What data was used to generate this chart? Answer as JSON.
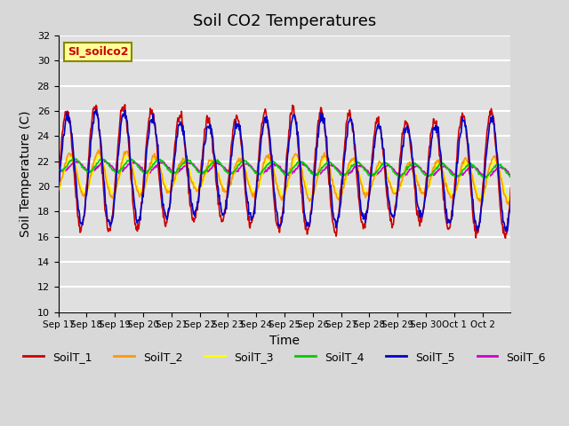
{
  "title": "Soil CO2 Temperatures",
  "xlabel": "Time",
  "ylabel": "Soil Temperature (C)",
  "ylim": [
    10,
    32
  ],
  "yticks": [
    10,
    12,
    14,
    16,
    18,
    20,
    22,
    24,
    26,
    28,
    30,
    32
  ],
  "x_labels": [
    "Sep 17",
    "Sep 18",
    "Sep 19",
    "Sep 20",
    "Sep 21",
    "Sep 22",
    "Sep 23",
    "Sep 24",
    "Sep 25",
    "Sep 26",
    "Sep 27",
    "Sep 28",
    "Sep 29",
    "Sep 30",
    "Oct 1",
    "Oct 2"
  ],
  "legend_labels": [
    "SoilT_1",
    "SoilT_2",
    "SoilT_3",
    "SoilT_4",
    "SoilT_5",
    "SoilT_6"
  ],
  "line_colors": [
    "#cc0000",
    "#ff9900",
    "#ffff00",
    "#00cc00",
    "#0000cc",
    "#cc00cc"
  ],
  "annotation_text": "SI_soilco2",
  "annotation_color": "#cc0000",
  "annotation_bg": "#ffff99",
  "background_color": "#e0e0e0",
  "grid_color": "#ffffff",
  "n_days": 16,
  "n_points_per_day": 48
}
